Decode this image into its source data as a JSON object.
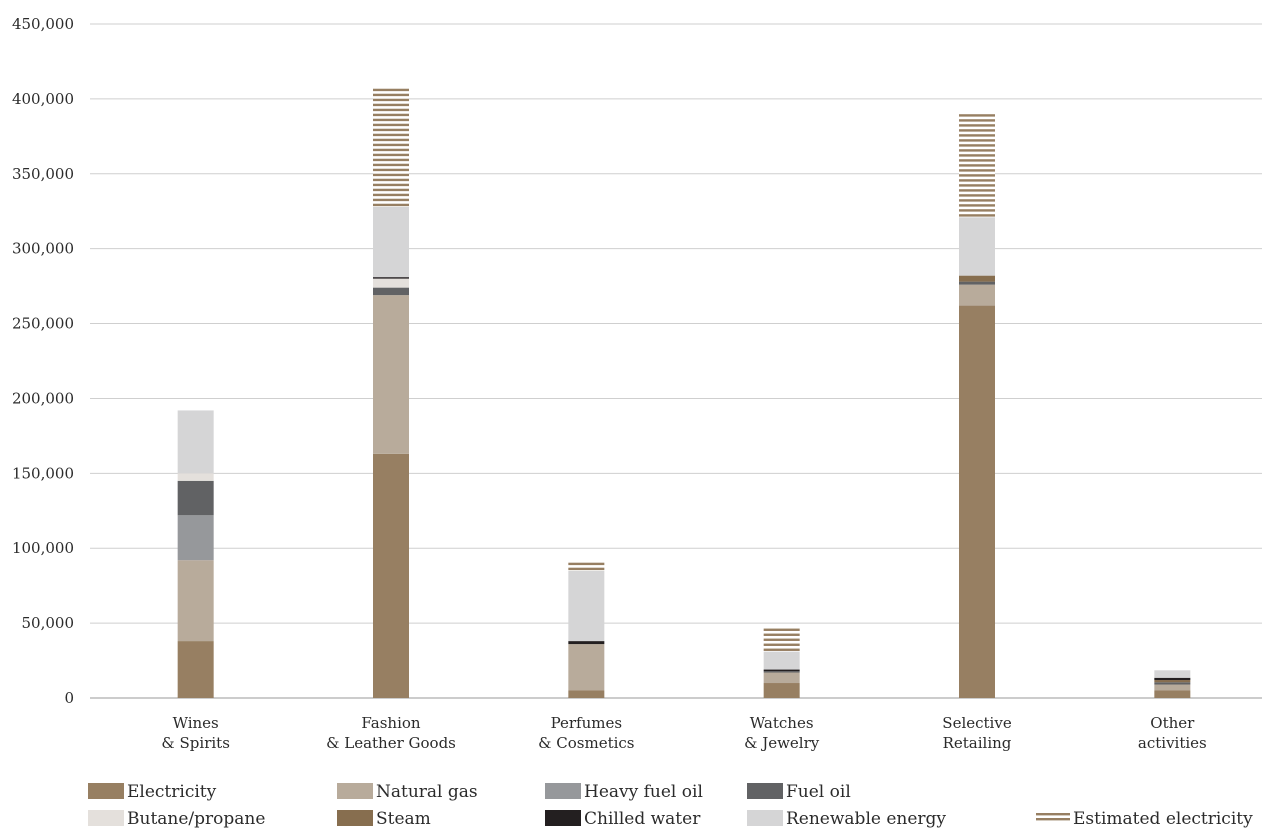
{
  "chart_data": {
    "type": "bar",
    "stacked": true,
    "categories": [
      [
        "Wines",
        "& Spirits"
      ],
      [
        "Fashion",
        "& Leather Goods"
      ],
      [
        "Perfumes",
        "& Cosmetics"
      ],
      [
        "Watches",
        "& Jewelry"
      ],
      [
        "Selective",
        "Retailing"
      ],
      [
        "Other",
        "activities"
      ]
    ],
    "ylim": [
      0,
      450000
    ],
    "yticks": [
      0,
      50000,
      100000,
      150000,
      200000,
      250000,
      300000,
      350000,
      400000,
      450000
    ],
    "ytick_labels": [
      "0",
      "50,000",
      "100,000",
      "150,000",
      "200,000",
      "250,000",
      "300,000",
      "350,000",
      "400,000",
      "450,000"
    ],
    "grid": true,
    "legend_position": "bottom",
    "series": [
      {
        "name": "Electricity",
        "color": "#977f62",
        "pattern": "solid",
        "values": [
          38000,
          163000,
          5000,
          10000,
          262000,
          5000
        ]
      },
      {
        "name": "Natural gas",
        "color": "#b8ab9b",
        "pattern": "solid",
        "values": [
          54000,
          106000,
          31000,
          7000,
          14000,
          4000
        ]
      },
      {
        "name": "Heavy fuel oil",
        "color": "#96989b",
        "pattern": "solid",
        "values": [
          30000,
          0,
          0,
          0,
          0,
          0
        ]
      },
      {
        "name": "Fuel oil",
        "color": "#616264",
        "pattern": "solid",
        "values": [
          23000,
          5000,
          0,
          1000,
          2000,
          1500
        ]
      },
      {
        "name": "Butane/propane",
        "color": "#e4e0dc",
        "pattern": "solid",
        "values": [
          5000,
          6000,
          0,
          0,
          0,
          0
        ]
      },
      {
        "name": "Steam",
        "color": "#876e4f",
        "pattern": "solid",
        "values": [
          0,
          0,
          0,
          0,
          4000,
          1500
        ]
      },
      {
        "name": "Chilled water",
        "color": "#231f20",
        "pattern": "solid",
        "values": [
          0,
          1000,
          2000,
          1000,
          0,
          1500
        ]
      },
      {
        "name": "Renewable energy",
        "color": "#d5d5d6",
        "pattern": "solid",
        "values": [
          42000,
          47000,
          47000,
          12000,
          39000,
          5000
        ]
      },
      {
        "name": "Estimated electricity",
        "color": "#977f62",
        "pattern": "striped",
        "values": [
          0,
          80000,
          5000,
          15000,
          71000,
          0
        ]
      }
    ]
  }
}
